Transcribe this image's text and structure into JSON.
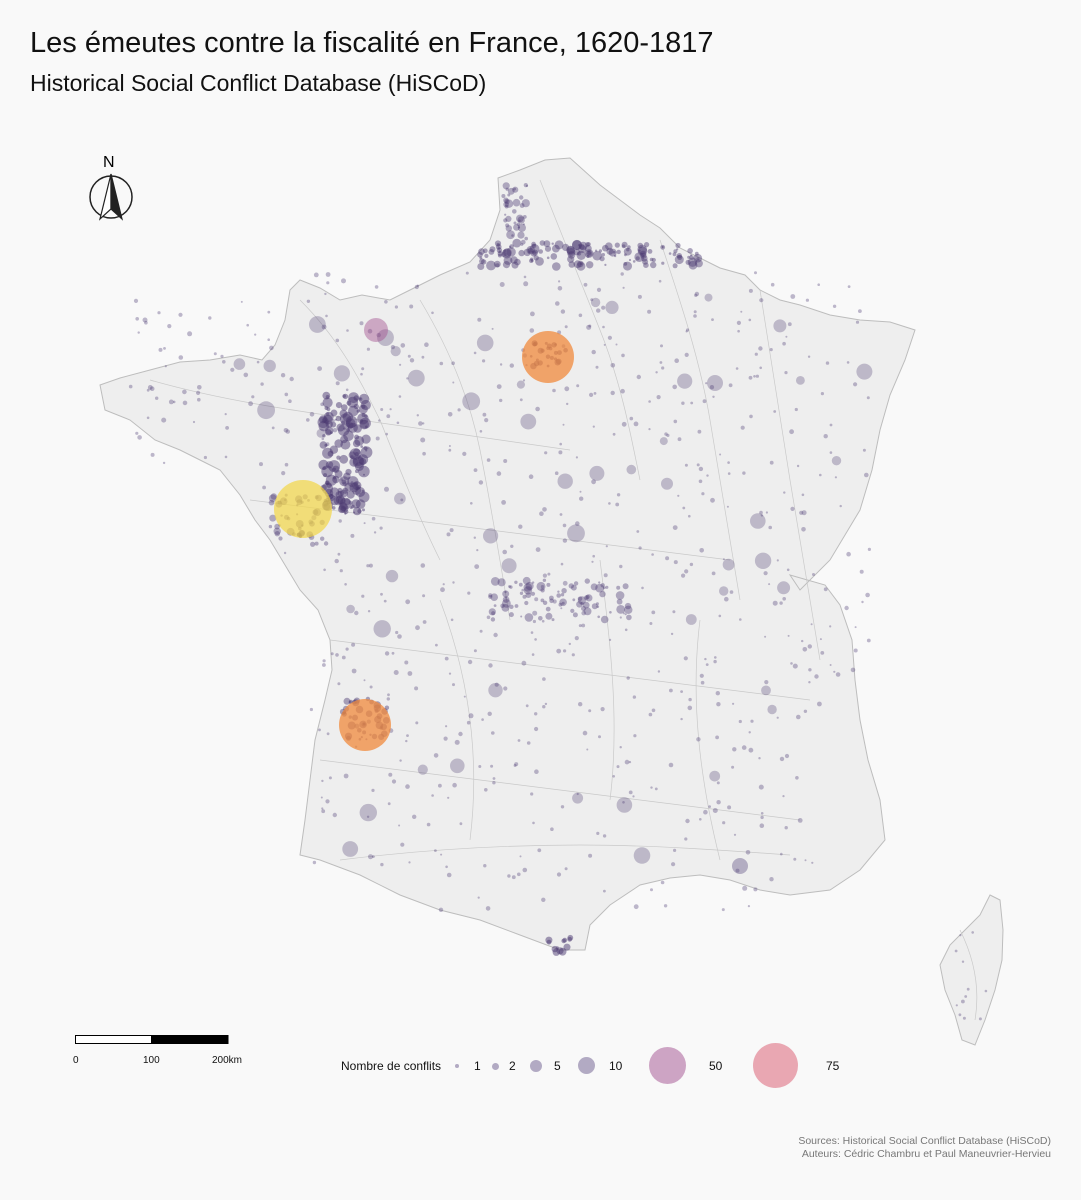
{
  "title": "Les émeutes contre la fiscalité en France, 1620-1817",
  "subtitle": "Historical Social Conflict Database (HiSCoD)",
  "north_arrow": {
    "label": "N",
    "icon": "north-arrow-icon"
  },
  "scale_bar": {
    "labels": [
      "0",
      "100",
      "200km"
    ]
  },
  "legend": {
    "title": "Nombre de conflits",
    "items": [
      {
        "label": "1",
        "color": "#5a4a80"
      },
      {
        "label": "2",
        "color": "#5a4a80"
      },
      {
        "label": "5",
        "color": "#5a4a80"
      },
      {
        "label": "10",
        "color": "#5a4a80"
      },
      {
        "label": "50",
        "color": "#a2508f"
      },
      {
        "label": "75",
        "color": "#d9566b"
      }
    ]
  },
  "colors": {
    "background": "#f9f9f9",
    "land": "#eeeeee",
    "borders": "#c4c4c4",
    "small_points": "#4b3a72",
    "large_orange": "#f08a3c",
    "large_yellow": "#f2d646"
  },
  "sources": {
    "line1": "Sources: Historical Social Conflict Database (HiSCoD)",
    "line2": "Auteurs: Cédric Chambru et Paul Maneuvrier-Hervieu"
  }
}
